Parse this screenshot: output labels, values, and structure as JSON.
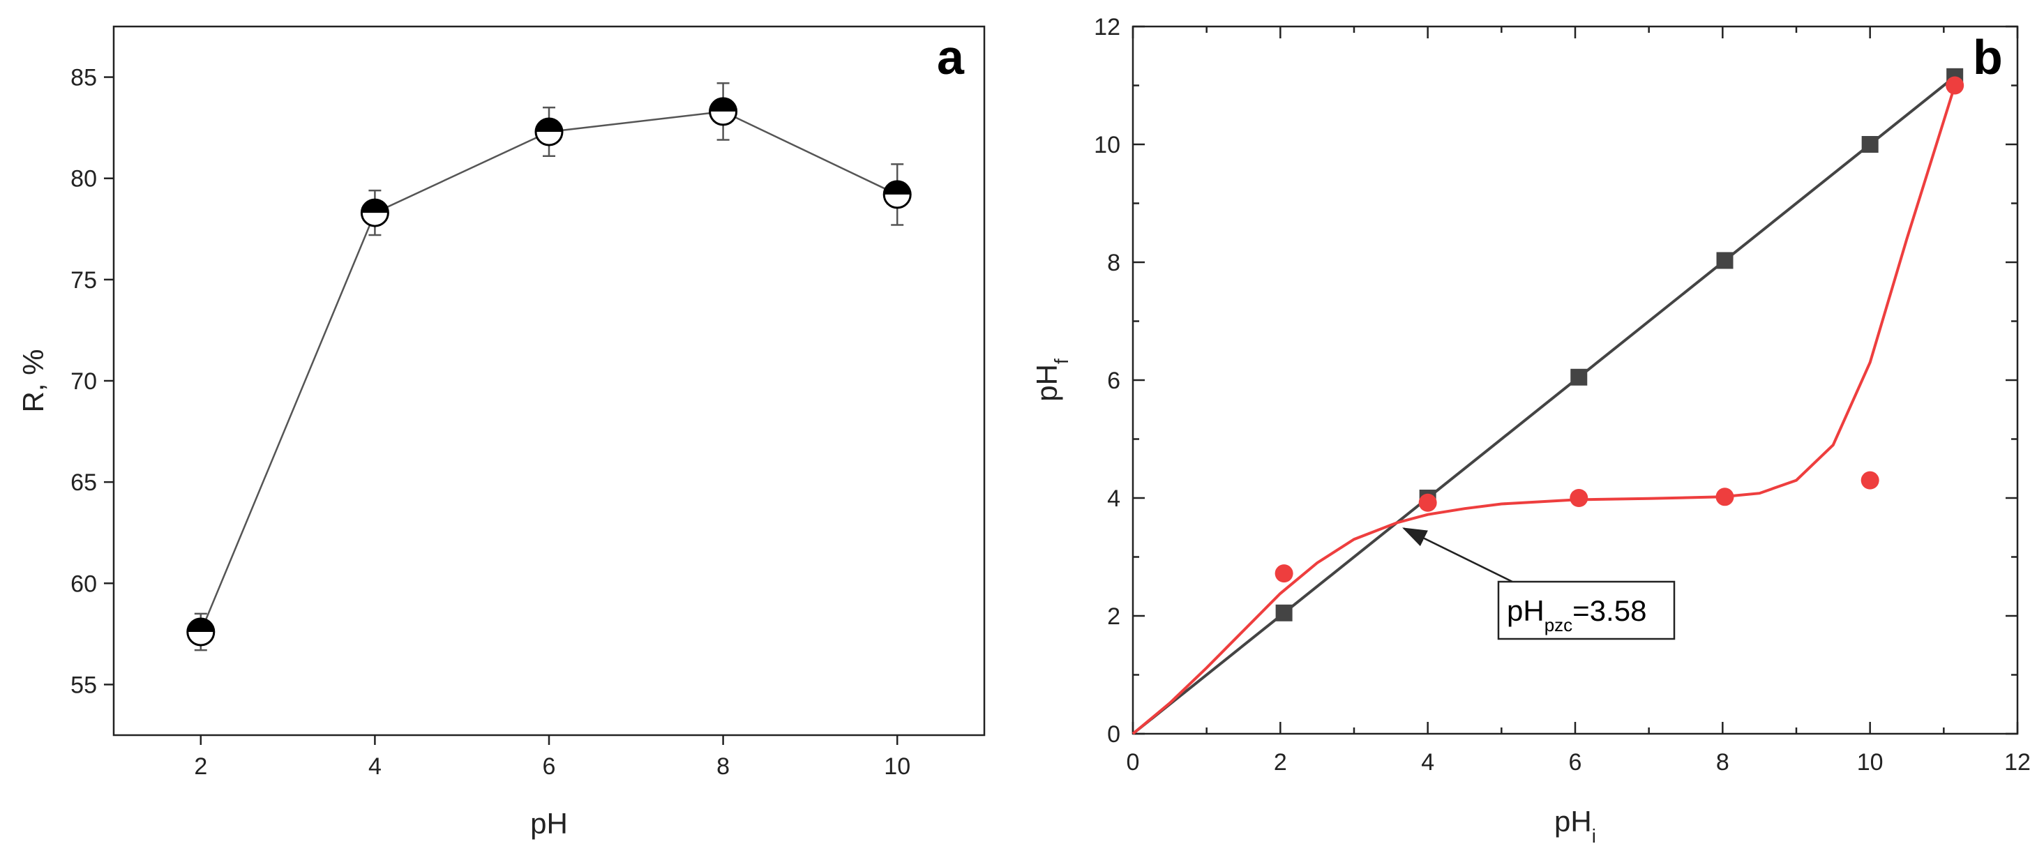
{
  "chart_data": [
    {
      "type": "line",
      "panel": "a",
      "xlabel": "pH",
      "ylabel": "R, %",
      "xlim": [
        1,
        11
      ],
      "ylim": [
        52.5,
        87.5
      ],
      "xticks": [
        2,
        4,
        6,
        8,
        10
      ],
      "yticks": [
        55,
        60,
        65,
        70,
        75,
        80,
        85
      ],
      "grid": false,
      "series": [
        {
          "x": [
            2,
            4,
            6,
            8,
            10
          ],
          "values": [
            57.6,
            78.3,
            82.3,
            83.3,
            79.2
          ],
          "error": [
            0.9,
            1.1,
            1.2,
            1.4,
            1.5
          ],
          "marker": "half-filled-circle",
          "color": "#555555"
        }
      ]
    },
    {
      "type": "scatter",
      "panel": "b",
      "xlabel": "pH",
      "xlabel_sub": "i",
      "ylabel": "pH",
      "ylabel_sub": "f",
      "xlim": [
        0,
        12
      ],
      "ylim": [
        0,
        12
      ],
      "xticks": [
        0,
        2,
        4,
        6,
        8,
        10,
        12
      ],
      "yticks": [
        0,
        2,
        4,
        6,
        8,
        10,
        12
      ],
      "grid": false,
      "series": [
        {
          "marker": "square",
          "color": "#444444",
          "x": [
            0,
            2.05,
            4.0,
            6.05,
            8.03,
            10.0,
            11.15
          ],
          "values": [
            0,
            2.05,
            4.0,
            6.05,
            8.03,
            10.0,
            11.15
          ]
        },
        {
          "marker": "circle",
          "color": "#ee3e3e",
          "x": [
            2.05,
            4.0,
            6.05,
            8.03,
            10.0,
            11.15
          ],
          "values": [
            2.72,
            3.92,
            4.0,
            4.02,
            4.3,
            11.0
          ]
        }
      ],
      "annotation": {
        "text_main": "pH",
        "text_sub": "pzc",
        "text_rest": "=3.58",
        "x": 3.58,
        "y": 3.58
      }
    }
  ],
  "panel_letters": {
    "a": "a",
    "b": "b"
  }
}
